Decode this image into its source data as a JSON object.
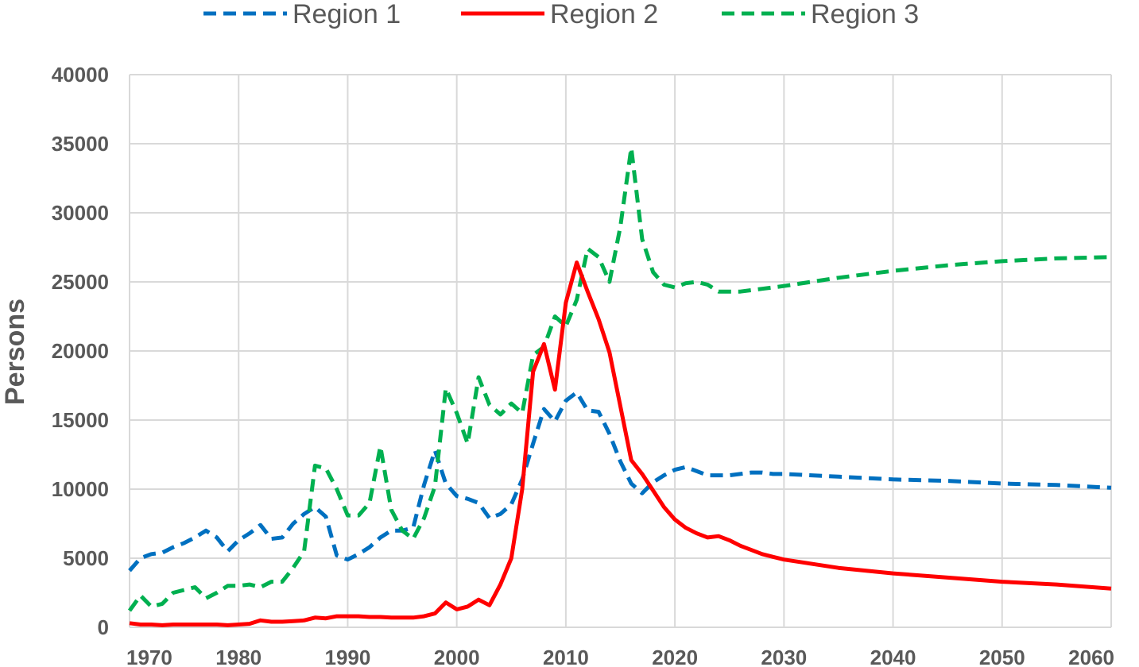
{
  "chart_data": {
    "type": "line",
    "ylabel": "Persons",
    "xlim": [
      1970,
      2060
    ],
    "ylim": [
      0,
      40000
    ],
    "x_ticks": [
      1970,
      1980,
      1990,
      2000,
      2010,
      2020,
      2030,
      2040,
      2050,
      2060
    ],
    "y_ticks": [
      0,
      5000,
      10000,
      15000,
      20000,
      25000,
      30000,
      35000,
      40000
    ],
    "grid": true,
    "legend_position": "top",
    "series": [
      {
        "name": "Region 1",
        "color": "#0070C0",
        "style": "dashed",
        "x": [
          1970,
          1971,
          1972,
          1973,
          1974,
          1975,
          1976,
          1977,
          1978,
          1979,
          1980,
          1981,
          1982,
          1983,
          1984,
          1985,
          1986,
          1987,
          1988,
          1989,
          1990,
          1991,
          1992,
          1993,
          1994,
          1995,
          1996,
          1997,
          1998,
          1999,
          2000,
          2001,
          2002,
          2003,
          2004,
          2005,
          2006,
          2007,
          2008,
          2009,
          2010,
          2011,
          2012,
          2013,
          2014,
          2015,
          2016,
          2017,
          2018,
          2019,
          2020,
          2021,
          2022,
          2023,
          2024,
          2025,
          2026,
          2027,
          2028,
          2029,
          2030,
          2035,
          2040,
          2045,
          2050,
          2055,
          2060
        ],
        "y": [
          4100,
          5000,
          5300,
          5400,
          5800,
          6100,
          6500,
          7000,
          6500,
          5500,
          6300,
          6800,
          7400,
          6400,
          6500,
          7500,
          8200,
          8700,
          8000,
          5200,
          4900,
          5300,
          5800,
          6500,
          7000,
          7000,
          7200,
          10300,
          12800,
          10400,
          9500,
          9300,
          9000,
          7900,
          8200,
          8900,
          10700,
          13300,
          15800,
          14900,
          16400,
          17000,
          15700,
          15600,
          14000,
          12000,
          10400,
          9700,
          10500,
          11000,
          11400,
          11600,
          11300,
          11000,
          11000,
          11000,
          11100,
          11200,
          11200,
          11100,
          11100,
          10900,
          10700,
          10600,
          10400,
          10300,
          10100
        ]
      },
      {
        "name": "Region 2",
        "color": "#FF0000",
        "style": "solid",
        "x": [
          1970,
          1971,
          1972,
          1973,
          1974,
          1975,
          1976,
          1977,
          1978,
          1979,
          1980,
          1981,
          1982,
          1983,
          1984,
          1985,
          1986,
          1987,
          1988,
          1989,
          1990,
          1991,
          1992,
          1993,
          1994,
          1995,
          1996,
          1997,
          1998,
          1999,
          2000,
          2001,
          2002,
          2003,
          2004,
          2005,
          2006,
          2007,
          2008,
          2009,
          2010,
          2011,
          2012,
          2013,
          2014,
          2015,
          2016,
          2017,
          2018,
          2019,
          2020,
          2021,
          2022,
          2023,
          2024,
          2025,
          2026,
          2027,
          2028,
          2029,
          2030,
          2035,
          2040,
          2045,
          2050,
          2055,
          2060
        ],
        "y": [
          300,
          200,
          200,
          150,
          200,
          200,
          200,
          200,
          200,
          150,
          200,
          250,
          500,
          400,
          400,
          450,
          500,
          700,
          650,
          800,
          800,
          800,
          750,
          750,
          700,
          700,
          700,
          800,
          1000,
          1800,
          1300,
          1500,
          2000,
          1600,
          3100,
          5000,
          10000,
          18500,
          20500,
          17200,
          23500,
          26400,
          24300,
          22300,
          19900,
          16000,
          12100,
          11100,
          9900,
          8700,
          7800,
          7200,
          6800,
          6500,
          6600,
          6300,
          5900,
          5600,
          5300,
          5100,
          4900,
          4300,
          3900,
          3600,
          3300,
          3100,
          2800
        ]
      },
      {
        "name": "Region 3",
        "color": "#00B050",
        "style": "dashed",
        "x": [
          1970,
          1971,
          1972,
          1973,
          1974,
          1975,
          1976,
          1977,
          1978,
          1979,
          1980,
          1981,
          1982,
          1983,
          1984,
          1985,
          1986,
          1987,
          1988,
          1989,
          1990,
          1991,
          1992,
          1993,
          1994,
          1995,
          1996,
          1997,
          1998,
          1999,
          2000,
          2001,
          2002,
          2003,
          2004,
          2005,
          2006,
          2007,
          2008,
          2009,
          2010,
          2011,
          2012,
          2013,
          2014,
          2015,
          2016,
          2017,
          2018,
          2019,
          2020,
          2021,
          2022,
          2023,
          2024,
          2025,
          2026,
          2027,
          2028,
          2029,
          2030,
          2035,
          2040,
          2045,
          2050,
          2055,
          2060
        ],
        "y": [
          1200,
          2300,
          1500,
          1700,
          2500,
          2700,
          2900,
          2100,
          2500,
          3000,
          3000,
          3100,
          2900,
          3300,
          3300,
          4300,
          5500,
          11700,
          11500,
          10000,
          8100,
          8100,
          9000,
          13100,
          8500,
          7000,
          6400,
          7900,
          10200,
          17300,
          15500,
          13300,
          18100,
          16100,
          15400,
          16200,
          15500,
          19700,
          20300,
          22500,
          21800,
          23700,
          27400,
          26800,
          25000,
          29000,
          34700,
          28100,
          25700,
          24800,
          24600,
          24900,
          25000,
          24800,
          24300,
          24300,
          24300,
          24400,
          24500,
          24600,
          24700,
          25300,
          25800,
          26200,
          26500,
          26700,
          26800
        ]
      }
    ]
  }
}
